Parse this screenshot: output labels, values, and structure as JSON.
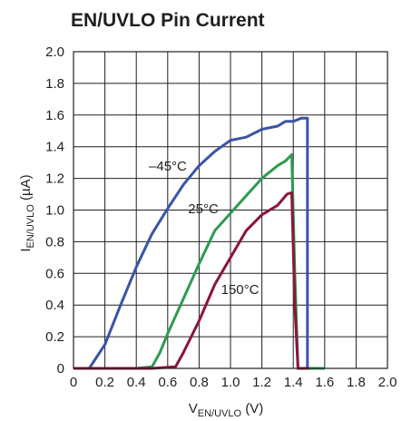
{
  "chart_data": {
    "type": "line",
    "title": "EN/UVLO Pin Current",
    "xlabel": {
      "main": "V",
      "sub": "EN/UVLO",
      "unit": " (V)"
    },
    "ylabel": {
      "main": "I",
      "sub": "EN/UVLO",
      "unit": " (µA)"
    },
    "xlim": [
      0,
      2.0
    ],
    "ylim": [
      0,
      2.0
    ],
    "xticks": [
      "0",
      "0.2",
      "0.4",
      "0.6",
      "0.8",
      "1.0",
      "1.2",
      "1.4",
      "1.6",
      "1.8",
      "2.0"
    ],
    "yticks": [
      "0",
      "0.2",
      "0.4",
      "0.6",
      "0.8",
      "1.0",
      "1.2",
      "1.4",
      "1.6",
      "1.8",
      "2.0"
    ],
    "grid": true,
    "series": [
      {
        "name": "–45°C",
        "color": "#3b54a5",
        "x": [
          0,
          0.1,
          0.2,
          0.3,
          0.4,
          0.5,
          0.6,
          0.7,
          0.8,
          0.9,
          1.0,
          1.1,
          1.2,
          1.3,
          1.35,
          1.4,
          1.45,
          1.49,
          1.49,
          1.5,
          1.6
        ],
        "y": [
          0,
          0,
          0.15,
          0.4,
          0.64,
          0.85,
          1.01,
          1.16,
          1.28,
          1.37,
          1.44,
          1.46,
          1.51,
          1.53,
          1.56,
          1.56,
          1.58,
          1.58,
          0,
          0,
          0
        ]
      },
      {
        "name": "25°C",
        "color": "#2e9a52",
        "x": [
          0,
          0.2,
          0.4,
          0.5,
          0.55,
          0.6,
          0.7,
          0.8,
          0.9,
          1.0,
          1.1,
          1.2,
          1.3,
          1.35,
          1.39,
          1.41,
          1.43,
          1.45,
          1.6
        ],
        "y": [
          0,
          0,
          0,
          0.01,
          0.1,
          0.22,
          0.44,
          0.66,
          0.87,
          0.98,
          1.09,
          1.2,
          1.28,
          1.31,
          1.35,
          0.6,
          0,
          0,
          0
        ]
      },
      {
        "name": "150°C",
        "color": "#8b1538",
        "x": [
          0,
          0.2,
          0.4,
          0.5,
          0.65,
          0.7,
          0.8,
          0.9,
          1.0,
          1.1,
          1.2,
          1.3,
          1.36,
          1.39,
          1.41,
          1.43,
          1.45,
          1.5
        ],
        "y": [
          0,
          0,
          0,
          0,
          0.01,
          0.1,
          0.3,
          0.53,
          0.7,
          0.87,
          0.97,
          1.03,
          1.1,
          1.11,
          0.4,
          0,
          0,
          0
        ]
      }
    ]
  }
}
